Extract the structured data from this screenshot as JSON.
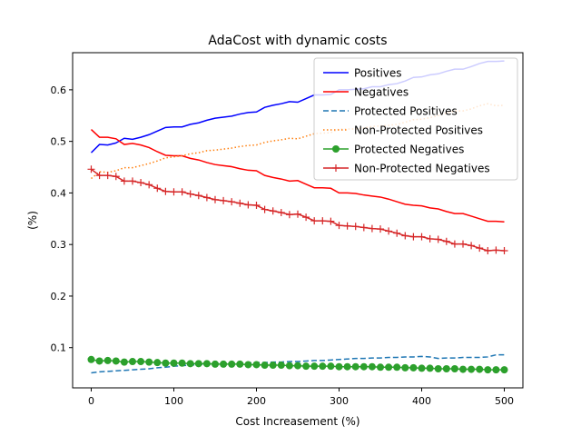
{
  "chart_data": {
    "type": "line",
    "title": "AdaCost with dynamic costs",
    "xlabel": "Cost Increasement (%)",
    "ylabel": "(%)",
    "xlim": [
      -22.5,
      522.5
    ],
    "ylim": [
      0.022,
      0.672
    ],
    "xticks": [
      0,
      100,
      200,
      300,
      400,
      500
    ],
    "yticks": [
      0.1,
      0.2,
      0.3,
      0.4,
      0.5,
      0.6
    ],
    "xtick_labels": [
      "0",
      "100",
      "200",
      "300",
      "400",
      "500"
    ],
    "ytick_labels": [
      "0.1",
      "0.2",
      "0.3",
      "0.4",
      "0.5",
      "0.6"
    ],
    "grid": false,
    "legend_position": "top-right",
    "x": [
      0,
      10,
      20,
      30,
      40,
      50,
      60,
      70,
      80,
      90,
      100,
      110,
      120,
      130,
      140,
      150,
      160,
      170,
      180,
      190,
      200,
      210,
      220,
      230,
      240,
      250,
      260,
      270,
      280,
      290,
      300,
      310,
      320,
      330,
      340,
      350,
      360,
      370,
      380,
      390,
      400,
      410,
      420,
      430,
      440,
      450,
      460,
      470,
      480,
      490,
      500
    ],
    "series": [
      {
        "name": "Positives",
        "color": "#0000ff",
        "style": "solid",
        "marker": "none",
        "values": [
          0.478,
          0.494,
          0.493,
          0.497,
          0.506,
          0.504,
          0.508,
          0.513,
          0.52,
          0.527,
          0.528,
          0.528,
          0.533,
          0.536,
          0.541,
          0.545,
          0.547,
          0.549,
          0.553,
          0.556,
          0.557,
          0.566,
          0.57,
          0.573,
          0.577,
          0.576,
          0.583,
          0.59,
          0.59,
          0.591,
          0.6,
          0.6,
          0.601,
          0.602,
          0.606,
          0.606,
          0.61,
          0.612,
          0.617,
          0.624,
          0.625,
          0.629,
          0.631,
          0.636,
          0.64,
          0.64,
          0.645,
          0.651,
          0.655,
          0.655,
          0.656
        ]
      },
      {
        "name": "Negatives",
        "color": "#ff0000",
        "style": "solid",
        "marker": "none",
        "values": [
          0.523,
          0.508,
          0.508,
          0.505,
          0.494,
          0.496,
          0.493,
          0.488,
          0.48,
          0.473,
          0.472,
          0.472,
          0.467,
          0.464,
          0.459,
          0.455,
          0.453,
          0.451,
          0.447,
          0.444,
          0.443,
          0.434,
          0.43,
          0.427,
          0.423,
          0.424,
          0.417,
          0.41,
          0.41,
          0.409,
          0.4,
          0.4,
          0.399,
          0.396,
          0.394,
          0.392,
          0.388,
          0.383,
          0.378,
          0.376,
          0.375,
          0.371,
          0.369,
          0.364,
          0.36,
          0.36,
          0.355,
          0.35,
          0.345,
          0.345,
          0.344
        ]
      },
      {
        "name": "Protected Positives",
        "color": "#1f77b4",
        "style": "dashed",
        "marker": "none",
        "values": [
          0.051,
          0.053,
          0.054,
          0.055,
          0.056,
          0.057,
          0.058,
          0.059,
          0.061,
          0.062,
          0.064,
          0.065,
          0.066,
          0.067,
          0.068,
          0.068,
          0.069,
          0.069,
          0.07,
          0.07,
          0.071,
          0.071,
          0.072,
          0.072,
          0.073,
          0.073,
          0.074,
          0.075,
          0.075,
          0.076,
          0.077,
          0.078,
          0.079,
          0.079,
          0.08,
          0.08,
          0.081,
          0.081,
          0.082,
          0.082,
          0.083,
          0.082,
          0.079,
          0.08,
          0.08,
          0.081,
          0.081,
          0.081,
          0.082,
          0.086,
          0.086
        ]
      },
      {
        "name": "Non-Protected Positives",
        "color": "#ff7f0e",
        "style": "dotted",
        "marker": "none",
        "values": [
          0.428,
          0.441,
          0.44,
          0.443,
          0.449,
          0.449,
          0.453,
          0.457,
          0.462,
          0.468,
          0.47,
          0.472,
          0.476,
          0.478,
          0.482,
          0.483,
          0.485,
          0.487,
          0.49,
          0.492,
          0.493,
          0.498,
          0.501,
          0.503,
          0.506,
          0.505,
          0.51,
          0.515,
          0.516,
          0.517,
          0.524,
          0.524,
          0.524,
          0.526,
          0.529,
          0.53,
          0.531,
          0.533,
          0.537,
          0.542,
          0.543,
          0.546,
          0.55,
          0.555,
          0.559,
          0.559,
          0.563,
          0.569,
          0.573,
          0.569,
          0.57
        ]
      },
      {
        "name": "Protected Negatives",
        "color": "#2ca02c",
        "style": "solid",
        "marker": "circle",
        "values": [
          0.077,
          0.074,
          0.075,
          0.074,
          0.072,
          0.073,
          0.073,
          0.072,
          0.071,
          0.07,
          0.07,
          0.07,
          0.069,
          0.069,
          0.069,
          0.068,
          0.068,
          0.068,
          0.068,
          0.067,
          0.067,
          0.066,
          0.066,
          0.066,
          0.065,
          0.065,
          0.064,
          0.064,
          0.064,
          0.064,
          0.063,
          0.063,
          0.063,
          0.063,
          0.063,
          0.062,
          0.062,
          0.062,
          0.061,
          0.061,
          0.06,
          0.06,
          0.059,
          0.059,
          0.059,
          0.058,
          0.058,
          0.058,
          0.057,
          0.057,
          0.057
        ]
      },
      {
        "name": "Non-Protected Negatives",
        "color": "#d62728",
        "style": "solid",
        "marker": "plus",
        "values": [
          0.446,
          0.434,
          0.434,
          0.432,
          0.423,
          0.423,
          0.42,
          0.416,
          0.409,
          0.403,
          0.402,
          0.402,
          0.398,
          0.395,
          0.391,
          0.387,
          0.385,
          0.383,
          0.38,
          0.377,
          0.376,
          0.368,
          0.365,
          0.362,
          0.358,
          0.359,
          0.353,
          0.346,
          0.346,
          0.345,
          0.337,
          0.336,
          0.335,
          0.333,
          0.331,
          0.33,
          0.326,
          0.322,
          0.317,
          0.315,
          0.315,
          0.311,
          0.31,
          0.306,
          0.301,
          0.301,
          0.298,
          0.293,
          0.288,
          0.289,
          0.288
        ]
      }
    ]
  }
}
